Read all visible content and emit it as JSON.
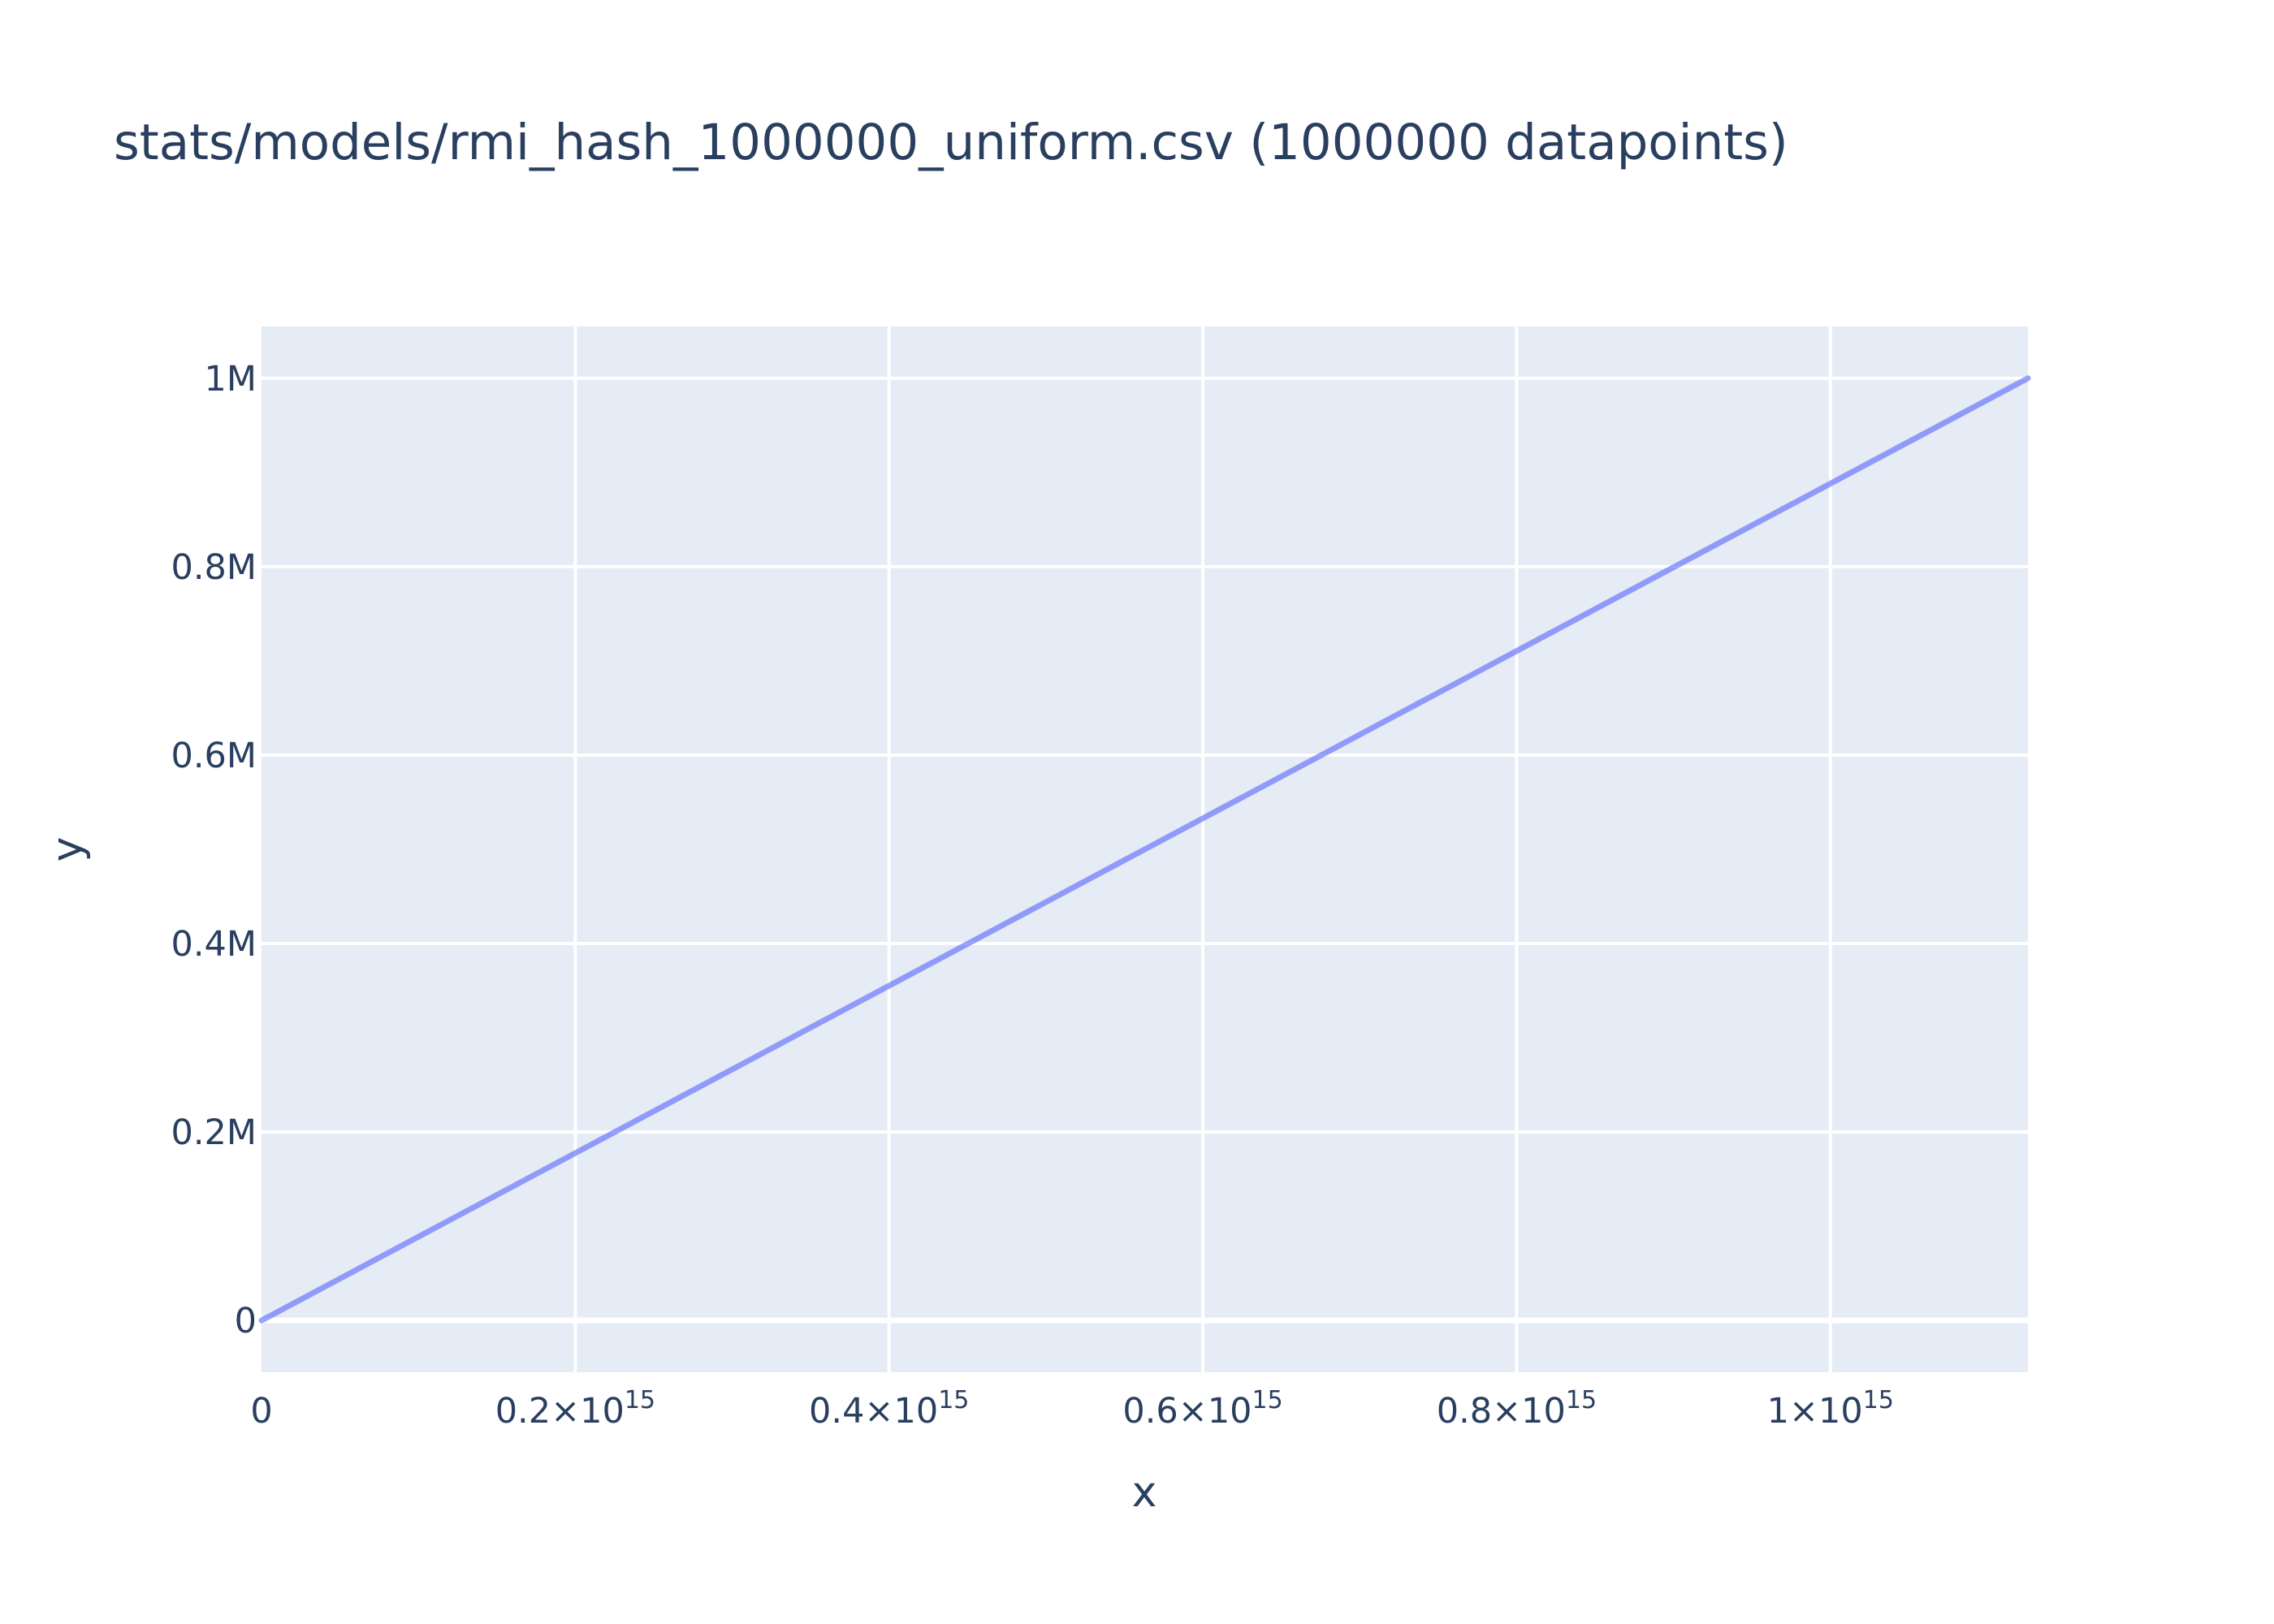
{
  "chart_data": {
    "type": "line",
    "title": "stats/models/rmi_hash_1000000_uniform.csv (1000000 datapoints)",
    "xlabel": "x",
    "ylabel": "y",
    "xlim": [
      0,
      1125899906842624
    ],
    "ylim": [
      -55000,
      1055000
    ],
    "grid": true,
    "legend": "none",
    "x_ticks": [
      {
        "value": 0,
        "mant": "0",
        "exp": ""
      },
      {
        "value": 200000000000000,
        "mant": "0.2×10",
        "exp": "15"
      },
      {
        "value": 400000000000000,
        "mant": "0.4×10",
        "exp": "15"
      },
      {
        "value": 600000000000000,
        "mant": "0.6×10",
        "exp": "15"
      },
      {
        "value": 800000000000000,
        "mant": "0.8×10",
        "exp": "15"
      },
      {
        "value": 1000000000000000,
        "mant": "1×10",
        "exp": "15"
      }
    ],
    "y_ticks": [
      {
        "value": 0,
        "label": "0"
      },
      {
        "value": 200000,
        "label": "0.2M"
      },
      {
        "value": 400000,
        "label": "0.4M"
      },
      {
        "value": 600000,
        "label": "0.6M"
      },
      {
        "value": 800000,
        "label": "0.8M"
      },
      {
        "value": 1000000,
        "label": "1M"
      }
    ],
    "series": [
      {
        "color": "#636efa",
        "x": [
          0,
          1125899906842624
        ],
        "y": [
          0,
          1000000
        ]
      }
    ]
  },
  "colors": {
    "plot_bg": "#e5ecf6",
    "grid": "#ffffff",
    "text": "#2a3f5f",
    "line": "#636efa"
  }
}
